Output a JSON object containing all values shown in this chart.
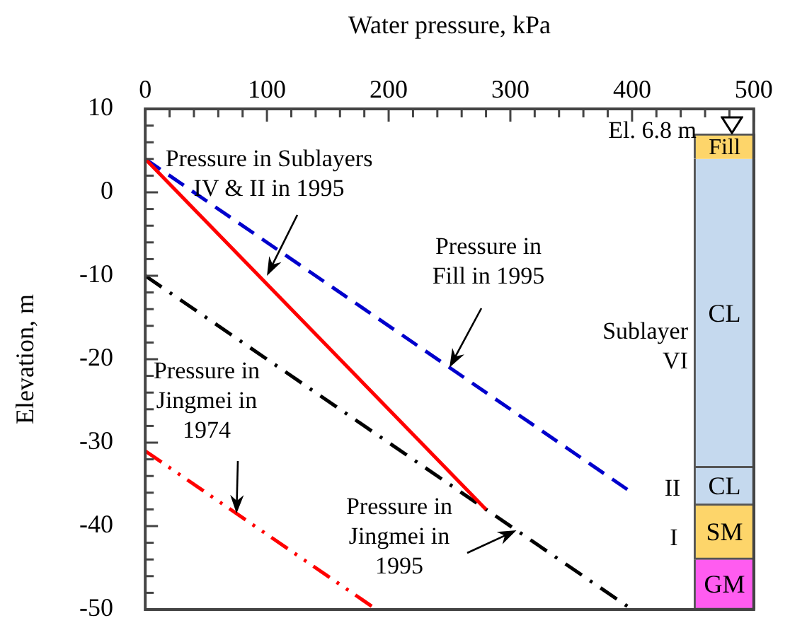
{
  "chart_data": {
    "type": "line",
    "xlabel": "Water pressure, kPa",
    "ylabel": "Elevation, m",
    "xlim": [
      0,
      500
    ],
    "ylim": [
      -50,
      10
    ],
    "xticks": [
      0,
      {
        "value": 20,
        "label": null
      },
      {
        "value": 40,
        "label": null
      },
      {
        "value": 60,
        "label": null
      },
      {
        "value": 80,
        "label": null
      },
      100,
      {
        "value": 120,
        "label": null
      },
      {
        "value": 140,
        "label": null
      },
      {
        "value": 160,
        "label": null
      },
      {
        "value": 180,
        "label": null
      },
      200,
      {
        "value": 220,
        "label": null
      },
      {
        "value": 240,
        "label": null
      },
      {
        "value": 260,
        "label": null
      },
      {
        "value": 280,
        "label": null
      },
      300,
      {
        "value": 320,
        "label": null
      },
      {
        "value": 340,
        "label": null
      },
      {
        "value": 360,
        "label": null
      },
      {
        "value": 380,
        "label": null
      },
      400,
      {
        "value": 420,
        "label": null
      },
      {
        "value": 440,
        "label": null
      },
      {
        "value": 460,
        "label": null
      },
      {
        "value": 480,
        "label": null
      },
      500
    ],
    "yticks": [
      -50,
      {
        "value": -48,
        "label": null
      },
      {
        "value": -46,
        "label": null
      },
      {
        "value": -44,
        "label": null
      },
      {
        "value": -42,
        "label": null
      },
      -40,
      {
        "value": -38,
        "label": null
      },
      {
        "value": -36,
        "label": null
      },
      {
        "value": -34,
        "label": null
      },
      {
        "value": -32,
        "label": null
      },
      -30,
      {
        "value": -28,
        "label": null
      },
      {
        "value": -26,
        "label": null
      },
      {
        "value": -24,
        "label": null
      },
      {
        "value": -22,
        "label": null
      },
      -20,
      {
        "value": -18,
        "label": null
      },
      {
        "value": -16,
        "label": null
      },
      {
        "value": -14,
        "label": null
      },
      {
        "value": -12,
        "label": null
      },
      -10,
      {
        "value": -8,
        "label": null
      },
      {
        "value": -6,
        "label": null
      },
      {
        "value": -4,
        "label": null
      },
      {
        "value": -2,
        "label": null
      },
      0,
      {
        "value": 2,
        "label": null
      },
      {
        "value": 4,
        "label": null
      },
      {
        "value": 6,
        "label": null
      },
      {
        "value": 8,
        "label": null
      },
      10
    ],
    "grid": false,
    "marker": "none",
    "series": [
      {
        "color": "#ff0000",
        "line_style": "solid",
        "x": [
          0,
          280
        ],
        "values": [
          4,
          -38
        ]
      },
      {
        "color": "#0000cc",
        "line_style": "dashed",
        "x": [
          0,
          400
        ],
        "values": [
          4,
          -36
        ]
      },
      {
        "color": "#000000",
        "line_style": "dashdot",
        "x": [
          0,
          400
        ],
        "values": [
          -10,
          -50
        ]
      },
      {
        "color": "#ff0000",
        "line_style": "dashdotdot",
        "x": [
          0,
          190
        ],
        "values": [
          -31,
          -50
        ]
      },
      {
        "type": "bar",
        "name": "Fill",
        "color": "#fdd56a",
        "x": [
          476
        ],
        "base": [
          4
        ],
        "values": [
          3
        ]
      },
      {
        "type": "bar",
        "name": "CL",
        "color": "#c5d9ee",
        "x": [
          476
        ],
        "base": [
          -33
        ],
        "values": [
          37
        ]
      },
      {
        "type": "bar",
        "name": "CL",
        "color": "#c5d9ee",
        "x": [
          476
        ],
        "base": [
          -37.5
        ],
        "values": [
          4.5
        ]
      },
      {
        "type": "bar",
        "name": "SM",
        "color": "#fdd56a",
        "x": [
          476
        ],
        "base": [
          -44
        ],
        "values": [
          6.5
        ]
      },
      {
        "type": "bar",
        "name": "GM",
        "color": "#ff5cf0",
        "x": [
          476
        ],
        "base": [
          -50
        ],
        "values": [
          6
        ]
      }
    ],
    "annotations": [
      {
        "text": "Pressure in Sublayers IV & II in 1995",
        "x": 100,
        "y": -10
      },
      {
        "text": "Pressure in Fill in 1995",
        "x": 250,
        "y": -21
      },
      {
        "text": "Pressure in Jingmei in 1974",
        "x": 75,
        "y": -38.5
      },
      {
        "text": "Pressure in Jingmei in 1995",
        "x": 305,
        "y": -40.5
      },
      "Sublayer VI",
      "II",
      "I",
      "El. 6.8 m"
    ]
  }
}
